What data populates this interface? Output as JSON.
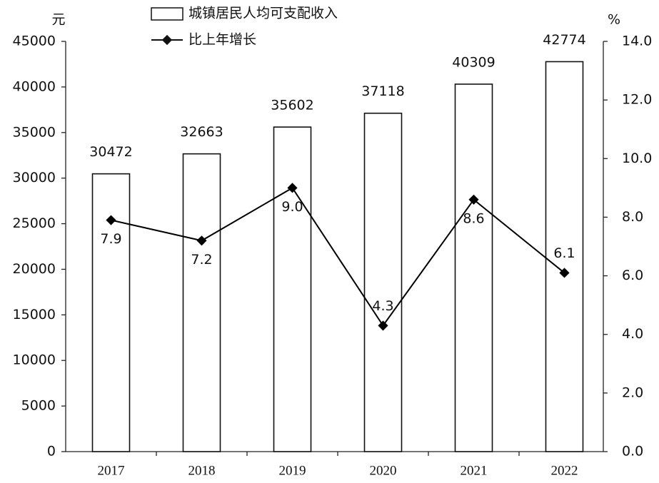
{
  "chart_data": {
    "type": "bar",
    "y_label": "元",
    "y2_label": "%",
    "categories": [
      "2017",
      "2018",
      "2019",
      "2020",
      "2021",
      "2022"
    ],
    "series": [
      {
        "name": "城镇居民人均可支配收入",
        "type": "bar",
        "color": "#ffffff",
        "values": [
          30472,
          32663,
          35602,
          37118,
          40309,
          42774
        ]
      },
      {
        "name": "比上年增长",
        "type": "line",
        "axis": "y2",
        "color": "#000000",
        "values": [
          7.9,
          7.2,
          9.0,
          4.3,
          8.6,
          6.1
        ],
        "value_labels": [
          "7.9",
          "7.2",
          "9.0",
          "4.3",
          "8.6",
          "6.1"
        ]
      }
    ],
    "ylim": [
      0,
      45000
    ],
    "yticks": [
      0,
      5000,
      10000,
      15000,
      20000,
      25000,
      30000,
      35000,
      40000,
      45000
    ],
    "y2lim": [
      0,
      14
    ],
    "y2ticks": [
      {
        "value": 0,
        "label": "0.0"
      },
      {
        "value": 2,
        "label": "2.0"
      },
      {
        "value": 4,
        "label": "4.0"
      },
      {
        "value": 6,
        "label": "6.0"
      },
      {
        "value": 8,
        "label": "8.0"
      },
      {
        "value": 10,
        "label": "10.0"
      },
      {
        "value": 12,
        "label": "12.0"
      },
      {
        "value": 14,
        "label": "14.0"
      }
    ],
    "grid": false
  }
}
